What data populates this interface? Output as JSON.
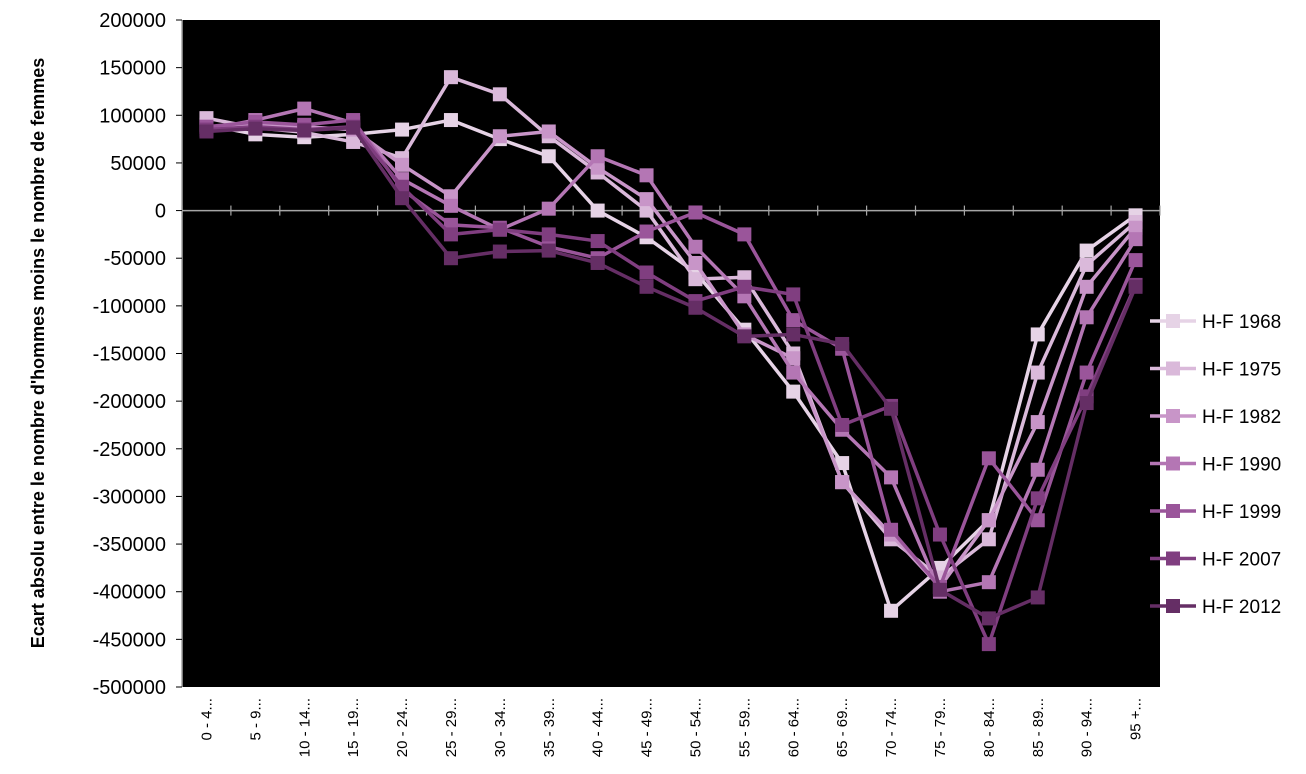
{
  "chart_data": {
    "type": "line",
    "title": "",
    "xlabel": "",
    "ylabel": "Ecart absolu entre le nombre d'hommes moins le nombre de femmes",
    "ylim": [
      -500000,
      200000
    ],
    "yticks": [
      200000,
      150000,
      100000,
      50000,
      0,
      -50000,
      -100000,
      -150000,
      -200000,
      -250000,
      -300000,
      -350000,
      -400000,
      -450000,
      -500000
    ],
    "ytick_labels": [
      "200000",
      "150000",
      "100000",
      "50000",
      "0",
      "-50000",
      "-100000",
      "-150000",
      "-200000",
      "-250000",
      "-300000",
      "-350000",
      "-400000",
      "-450000",
      "-500000"
    ],
    "categories": [
      "0 - 4...",
      "5 - 9...",
      "10 - 14...",
      "15 - 19...",
      "20 - 24...",
      "25 - 29...",
      "30 - 34...",
      "35 - 39...",
      "40 - 44...",
      "45 - 49...",
      "50 - 54...",
      "55 - 59...",
      "60 - 64...",
      "65 - 69...",
      "70 - 74...",
      "75 - 79...",
      "80 - 84...",
      "85 - 89...",
      "90 - 94...",
      "95 +..."
    ],
    "grid": false,
    "legend_position": "right",
    "plot_background": "#000000",
    "axis_color": "#a6a6a6",
    "series": [
      {
        "name": "H-F 1968",
        "color": "#e6d3e6",
        "values": [
          90000,
          80000,
          77000,
          80000,
          85000,
          95000,
          75000,
          57000,
          0,
          -28000,
          -65000,
          -125000,
          -190000,
          -265000,
          -420000,
          -375000,
          -325000,
          -130000,
          -42000,
          -5000
        ]
      },
      {
        "name": "H-F 1975",
        "color": "#dab9da",
        "values": [
          97000,
          87000,
          82000,
          72000,
          55000,
          140000,
          122000,
          78000,
          40000,
          0,
          -72000,
          -70000,
          -150000,
          -285000,
          -345000,
          -385000,
          -345000,
          -170000,
          -57000,
          -12000
        ]
      },
      {
        "name": "H-F 1982",
        "color": "#c895c8",
        "values": [
          88000,
          90000,
          88000,
          85000,
          48000,
          15000,
          78000,
          83000,
          45000,
          12000,
          -55000,
          -130000,
          -155000,
          -285000,
          -340000,
          -395000,
          -325000,
          -222000,
          -80000,
          -18000
        ]
      },
      {
        "name": "H-F 1990",
        "color": "#b476b4",
        "values": [
          85000,
          95000,
          107000,
          92000,
          33000,
          5000,
          -20000,
          2000,
          57000,
          37000,
          -38000,
          -90000,
          -170000,
          -230000,
          -280000,
          -400000,
          -390000,
          -272000,
          -112000,
          -30000
        ]
      },
      {
        "name": "H-F 1999",
        "color": "#9a559a",
        "values": [
          88000,
          93000,
          90000,
          95000,
          22000,
          -15000,
          -18000,
          -38000,
          -50000,
          -22000,
          -2000,
          -25000,
          -115000,
          -145000,
          -335000,
          -395000,
          -260000,
          -325000,
          -170000,
          -52000
        ]
      },
      {
        "name": "H-F 2007",
        "color": "#803e80",
        "values": [
          85000,
          88000,
          85000,
          88000,
          25000,
          -25000,
          -20000,
          -25000,
          -32000,
          -65000,
          -95000,
          -80000,
          -88000,
          -225000,
          -205000,
          -340000,
          -455000,
          -302000,
          -195000,
          -78000
        ]
      },
      {
        "name": "H-F 2012",
        "color": "#652e65",
        "values": [
          83000,
          86000,
          84000,
          87000,
          13000,
          -50000,
          -43000,
          -42000,
          -55000,
          -80000,
          -102000,
          -132000,
          -130000,
          -140000,
          -208000,
          -398000,
          -428000,
          -406000,
          -202000,
          -80000
        ]
      }
    ]
  }
}
